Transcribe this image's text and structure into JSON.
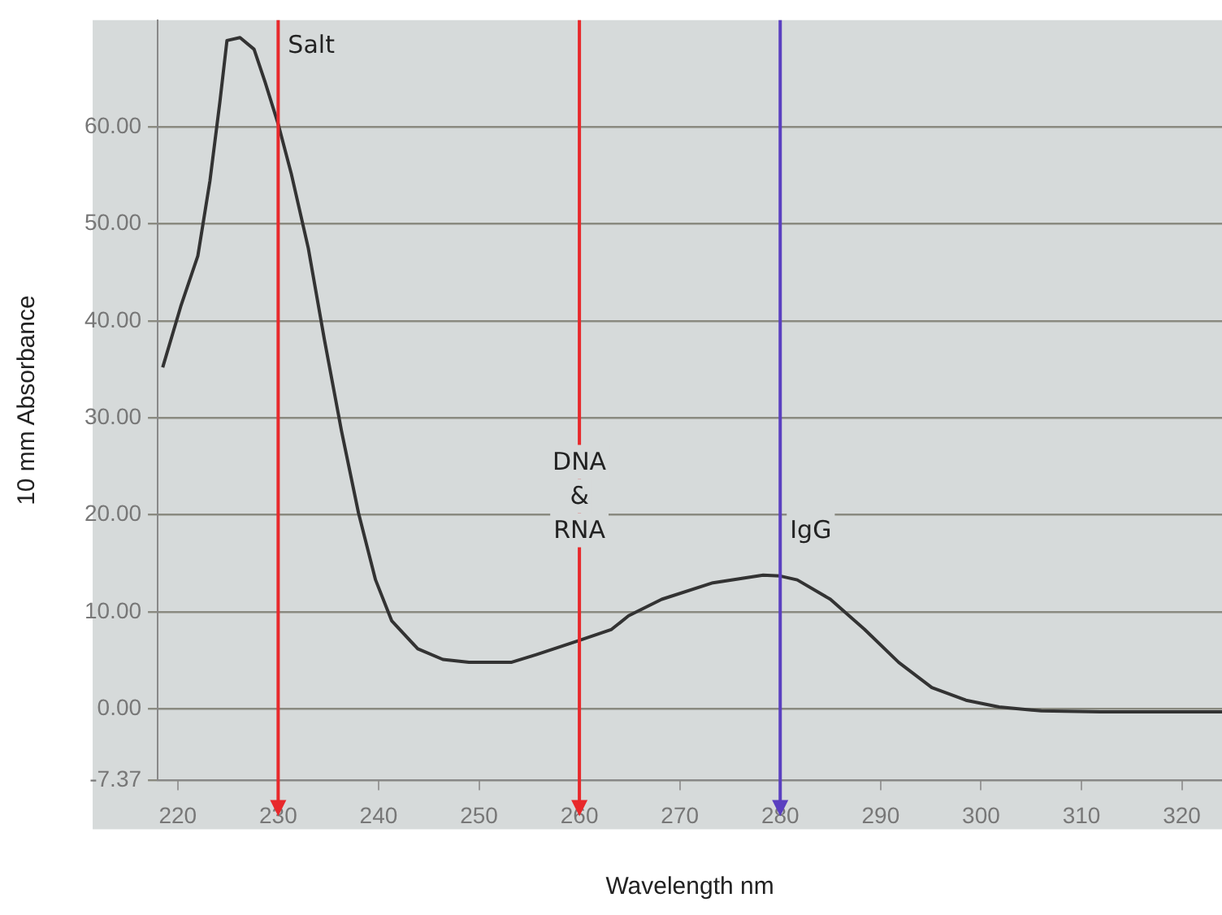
{
  "chart_data": {
    "type": "line",
    "xlabel": "Wavelength nm",
    "ylabel": "10 mm Absorbance",
    "x": [
      218.5,
      220.3,
      222,
      223.2,
      224.2,
      224.9,
      226.2,
      227.6,
      228.7,
      230,
      231.3,
      233,
      234.6,
      236.3,
      238,
      239.7,
      241.3,
      243.9,
      246.4,
      249,
      253.2,
      255.7,
      259.8,
      263.2,
      264.9,
      268.2,
      273.3,
      278.3,
      280,
      281.7,
      285,
      288.4,
      291.8,
      295.1,
      298.5,
      301.8,
      306,
      311.9,
      324
    ],
    "series": [
      {
        "color": "#333333",
        "values": [
          35.2,
          41.5,
          46.7,
          54.4,
          62.6,
          68.9,
          69.2,
          68,
          64.6,
          60.3,
          55.2,
          47.5,
          38.1,
          28.7,
          20.2,
          13.3,
          9.1,
          6.2,
          5.1,
          4.8,
          4.8,
          5.6,
          7,
          8.2,
          9.6,
          11.3,
          13,
          13.8,
          13.7,
          13.3,
          11.3,
          8.2,
          4.8,
          2.2,
          0.9,
          0.2,
          -0.2,
          -0.3,
          -0.3
        ]
      }
    ],
    "xlim": [
      218,
      324
    ],
    "xticks": [
      220,
      230,
      240,
      250,
      260,
      270,
      280,
      290,
      300,
      310,
      320
    ],
    "ylim": [
      -7.37,
      71
    ],
    "yticks": [
      {
        "value": -7.37,
        "label": "-7.37"
      },
      {
        "value": 0,
        "label": "0.00"
      },
      {
        "value": 10,
        "label": "10.00"
      },
      {
        "value": 20,
        "label": "20.00"
      },
      {
        "value": 30,
        "label": "30.00"
      },
      {
        "value": 40,
        "label": "40.00"
      },
      {
        "value": 50,
        "label": "50.00"
      },
      {
        "value": 60,
        "label": "60.00"
      }
    ],
    "ref_lines": [
      {
        "axis": "x",
        "value": 230,
        "color": "#e8282b"
      },
      {
        "axis": "x",
        "value": 260,
        "color": "#e8282b"
      },
      {
        "axis": "x",
        "value": 280,
        "color": "#5a3fc0"
      }
    ],
    "annotations": [
      {
        "text": "Salt",
        "x": 230,
        "y": 67
      },
      {
        "text": "DNA\n&\nRNA",
        "x": 260,
        "y": 17
      },
      {
        "text": "IgG",
        "x": 280,
        "y": 17
      }
    ],
    "grid": "y",
    "marker": "none",
    "line_style": "solid",
    "legend": false
  }
}
